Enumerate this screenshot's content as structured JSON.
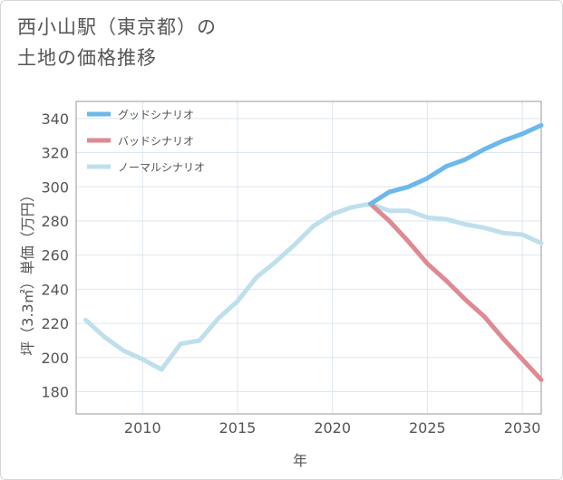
{
  "title": "西小山駅（東京都）の\n土地の価格推移",
  "chart_data": {
    "type": "line",
    "title": "西小山駅（東京都）の土地の価格推移",
    "xlabel": "年",
    "ylabel": "坪（3.3㎡）単価（万円）",
    "xlim": [
      2006.5,
      2031
    ],
    "ylim": [
      167,
      350
    ],
    "xticks": [
      2010,
      2015,
      2020,
      2025,
      2030
    ],
    "yticks": [
      180,
      200,
      220,
      240,
      260,
      280,
      300,
      320,
      340
    ],
    "grid": true,
    "legend_position": "top-left",
    "series": [
      {
        "name": "グッドシナリオ",
        "color": "#6cb8ec",
        "x": [
          2022,
          2023,
          2024,
          2025,
          2026,
          2027,
          2028,
          2029,
          2030,
          2031
        ],
        "y": [
          290,
          297,
          300,
          305,
          312,
          316,
          322,
          327,
          331,
          336
        ]
      },
      {
        "name": "バッドシナリオ",
        "color": "#dd8a92",
        "x": [
          2022,
          2023,
          2024,
          2025,
          2026,
          2027,
          2028,
          2029,
          2030,
          2031
        ],
        "y": [
          290,
          280,
          268,
          255,
          245,
          234,
          224,
          211,
          199,
          187
        ]
      },
      {
        "name": "ノーマルシナリオ",
        "color": "#bfdfec",
        "x": [
          2007,
          2008,
          2009,
          2010,
          2011,
          2012,
          2013,
          2014,
          2015,
          2016,
          2017,
          2018,
          2019,
          2020,
          2021,
          2022,
          2023,
          2024,
          2025,
          2026,
          2027,
          2028,
          2029,
          2030,
          2031
        ],
        "y": [
          222,
          212,
          204,
          199,
          193,
          208,
          210,
          223,
          233,
          247,
          256,
          266,
          277,
          284,
          288,
          290,
          286,
          286,
          282,
          281,
          278,
          276,
          273,
          272,
          267
        ]
      }
    ]
  }
}
